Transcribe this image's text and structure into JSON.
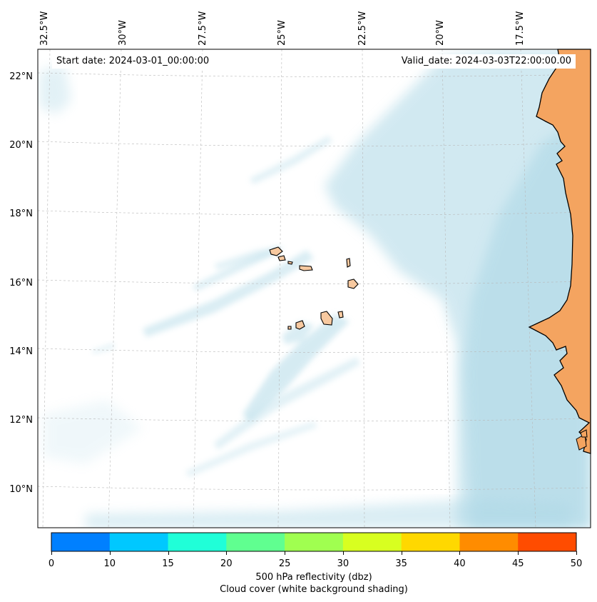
{
  "map": {
    "start_date": "Start date: 2024-03-01_00:00:00",
    "valid_date": "Valid_date: 2024-03-03T22:00:00.00",
    "lon_labels": [
      "32.5°W",
      "30°W",
      "27.5°W",
      "25°W",
      "22.5°W",
      "20°W",
      "17.5°W"
    ],
    "lat_labels": [
      "22°N",
      "20°N",
      "18°N",
      "16°N",
      "14°N",
      "12°N",
      "10°N"
    ],
    "colors": {
      "land": "#f4a460",
      "land_light": "#f7c9a0",
      "cloud": "#add8e6",
      "coastline": "#000000",
      "grid": "#b0b0b0"
    }
  },
  "colorbar": {
    "ticks": [
      "0",
      "10",
      "15",
      "20",
      "25",
      "30",
      "35",
      "40",
      "45",
      "50"
    ],
    "colors": [
      "#0080ff",
      "#00c8ff",
      "#20ffd8",
      "#60ff90",
      "#a0ff50",
      "#d8ff20",
      "#ffd800",
      "#ff8c00",
      "#ff4c00"
    ],
    "label": "500 hPa reflectivity (dbz)",
    "sublabel": "Cloud cover (white background shading)"
  }
}
